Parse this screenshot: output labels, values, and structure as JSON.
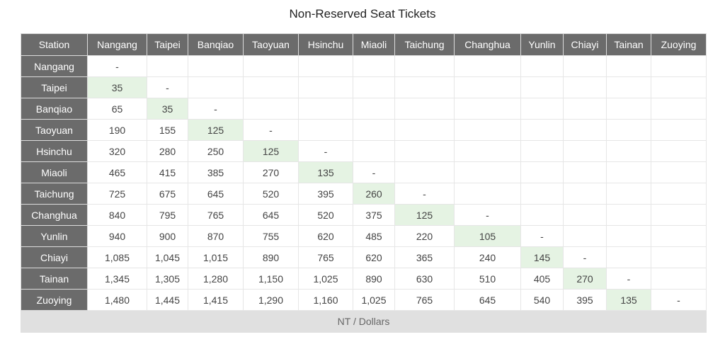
{
  "page": {
    "title": "Non-Reserved Seat Tickets"
  },
  "table": {
    "corner_label": "Station",
    "stations": [
      "Nangang",
      "Taipei",
      "Banqiao",
      "Taoyuan",
      "Hsinchu",
      "Miaoli",
      "Taichung",
      "Changhua",
      "Yunlin",
      "Chiayi",
      "Tainan",
      "Zuoying"
    ],
    "rows": [
      [
        "-",
        "",
        "",
        "",
        "",
        "",
        "",
        "",
        "",
        "",
        "",
        ""
      ],
      [
        "35",
        "-",
        "",
        "",
        "",
        "",
        "",
        "",
        "",
        "",
        "",
        ""
      ],
      [
        "65",
        "35",
        "-",
        "",
        "",
        "",
        "",
        "",
        "",
        "",
        "",
        ""
      ],
      [
        "190",
        "155",
        "125",
        "-",
        "",
        "",
        "",
        "",
        "",
        "",
        "",
        ""
      ],
      [
        "320",
        "280",
        "250",
        "125",
        "-",
        "",
        "",
        "",
        "",
        "",
        "",
        ""
      ],
      [
        "465",
        "415",
        "385",
        "270",
        "135",
        "-",
        "",
        "",
        "",
        "",
        "",
        ""
      ],
      [
        "725",
        "675",
        "645",
        "520",
        "395",
        "260",
        "-",
        "",
        "",
        "",
        "",
        ""
      ],
      [
        "840",
        "795",
        "765",
        "645",
        "520",
        "375",
        "125",
        "-",
        "",
        "",
        "",
        ""
      ],
      [
        "940",
        "900",
        "870",
        "755",
        "620",
        "485",
        "220",
        "105",
        "-",
        "",
        "",
        ""
      ],
      [
        "1,085",
        "1,045",
        "1,015",
        "890",
        "765",
        "620",
        "365",
        "240",
        "145",
        "-",
        "",
        ""
      ],
      [
        "1,345",
        "1,305",
        "1,280",
        "1,150",
        "1,025",
        "890",
        "630",
        "510",
        "405",
        "270",
        "-",
        ""
      ],
      [
        "1,480",
        "1,445",
        "1,415",
        "1,290",
        "1,160",
        "1,025",
        "765",
        "645",
        "540",
        "395",
        "135",
        "-"
      ]
    ],
    "footer_note": "NT / Dollars",
    "highlight_color": "#e5f3e3",
    "header_color": "#6b6b6b"
  }
}
